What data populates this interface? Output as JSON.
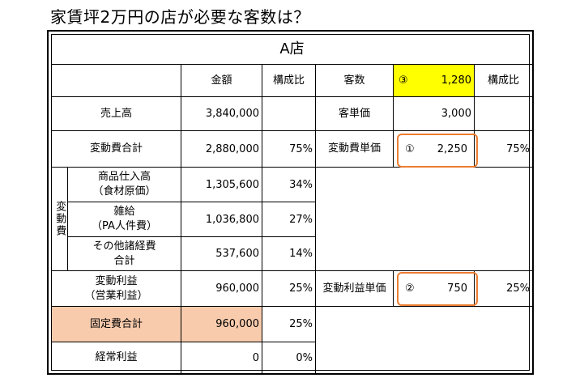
{
  "title": "家賃坪2万円の店が必要な客数は？",
  "store": "A店",
  "headers": {
    "amount": "金額",
    "ratio": "構成比",
    "customers": "客数",
    "ratio2": "構成比"
  },
  "customers": {
    "marker": "③",
    "value": "1,280"
  },
  "rows": {
    "sales": {
      "label": "売上高",
      "amount": "3,840,000"
    },
    "unit_price": {
      "label": "客単価",
      "value": "3,000"
    },
    "variable_total": {
      "label": "変動費合計",
      "amount": "2,880,000",
      "ratio": "75%"
    },
    "variable_unit": {
      "label": "変動費単価",
      "marker": "①",
      "value": "2,250",
      "ratio": "75%"
    },
    "variable_group_label": "変動費",
    "purchases": {
      "label": "商品仕入高\n（食材原価）",
      "amount": "1,305,600",
      "ratio": "34%"
    },
    "wages": {
      "label": "雑給\n（PA人件費）",
      "amount": "1,036,800",
      "ratio": "27%"
    },
    "other": {
      "label": "その他諸経費\n合計",
      "amount": "537,600",
      "ratio": "14%"
    },
    "contribution": {
      "label": "変動利益\n（営業利益）",
      "amount": "960,000",
      "ratio": "25%"
    },
    "contribution_unit": {
      "label": "変動利益単価",
      "marker": "②",
      "value": "750",
      "ratio": "25%"
    },
    "fixed_total": {
      "label": "固定費合計",
      "amount": "960,000",
      "ratio": "25%"
    },
    "ordinary_profit": {
      "label": "経常利益",
      "amount": "0",
      "ratio": "0%"
    }
  },
  "colors": {
    "highlight_yellow": "#ffff00",
    "fixed_peach": "#f8cbad",
    "box_orange": "#ed7d31"
  }
}
